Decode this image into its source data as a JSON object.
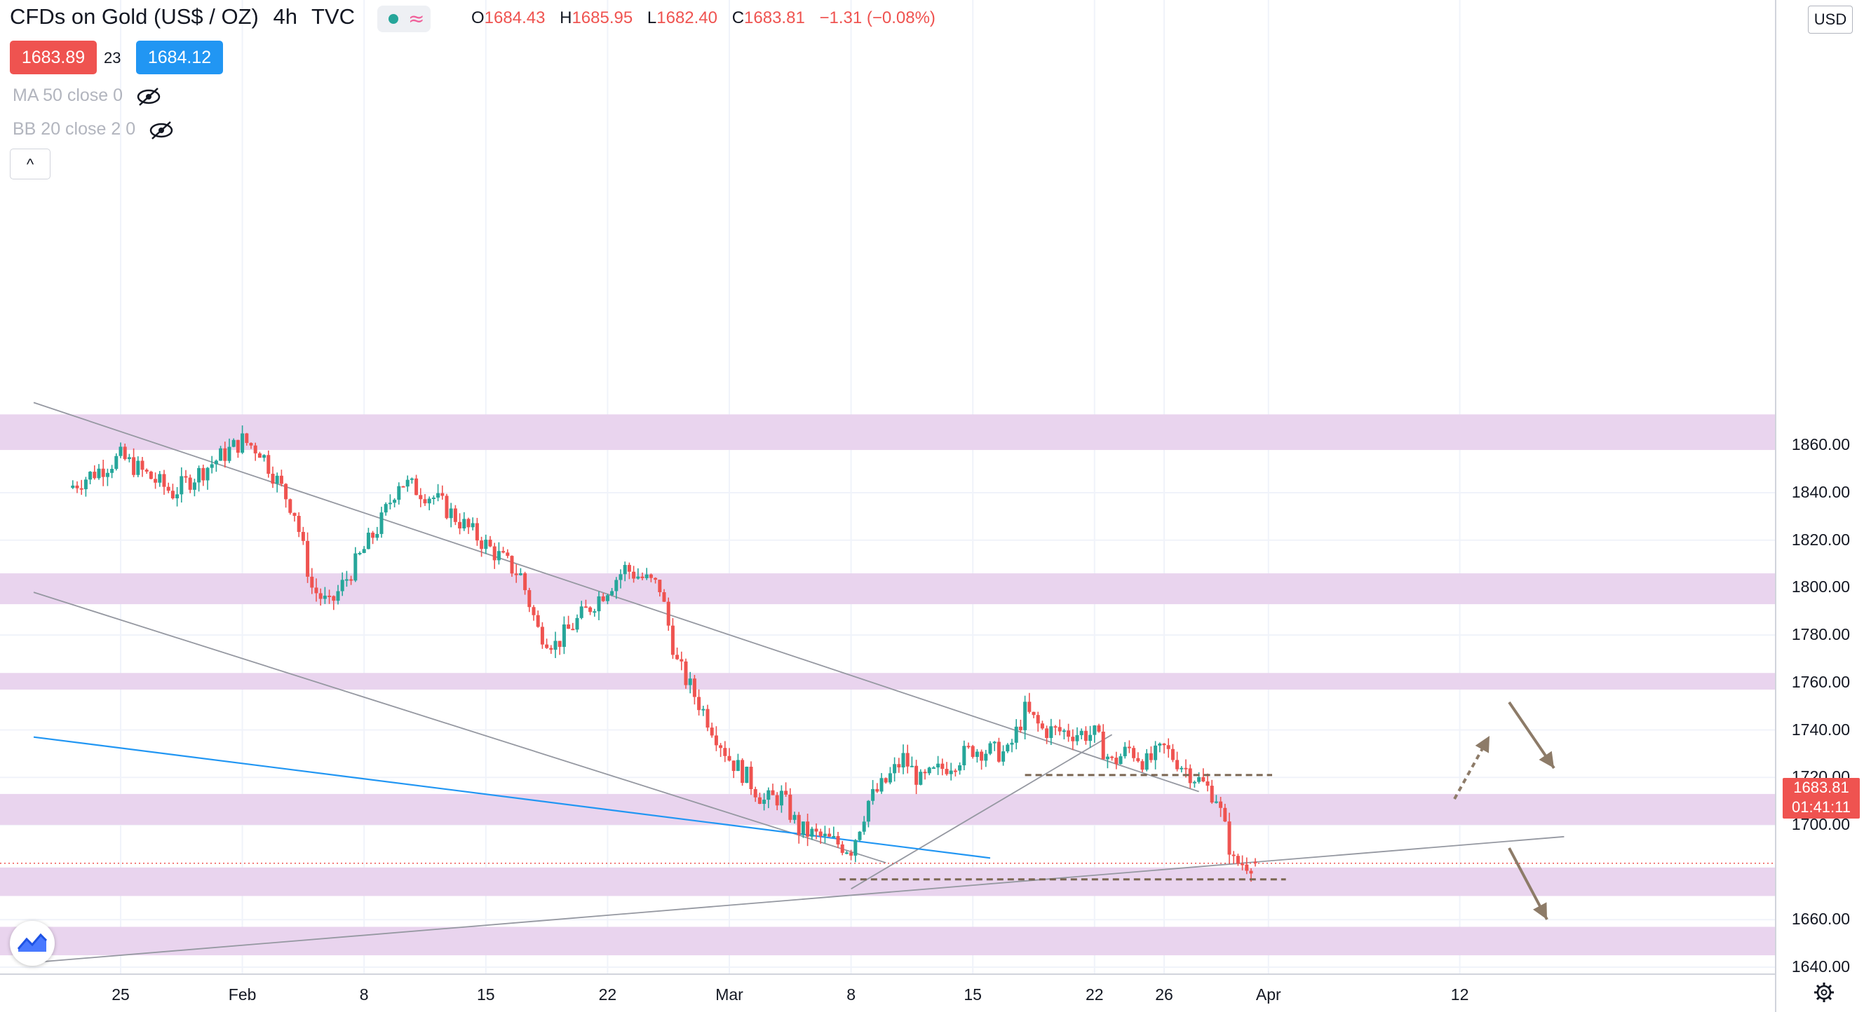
{
  "header": {
    "symbol": "CFDs on Gold (US$ / OZ)",
    "interval": "4h",
    "source": "TVC",
    "status_icons": [
      "market-open-dot-icon",
      "wave-icon"
    ],
    "ohlc": {
      "o_label": "O",
      "o": "1684.43",
      "h_label": "H",
      "h": "1685.95",
      "l_label": "L",
      "l": "1682.40",
      "c_label": "C",
      "c": "1683.81",
      "change": "−1.31 (−0.08%)"
    }
  },
  "trade": {
    "sell": "1683.89",
    "spread": "23",
    "buy": "1684.12"
  },
  "indicators": [
    {
      "label": "MA 50 close 0",
      "icon": "eye-hidden-icon"
    },
    {
      "label": "BB 20 close 2 0",
      "icon": "eye-hidden-icon"
    }
  ],
  "price_axis": {
    "currency": "USD",
    "labels": [
      "1860.00",
      "1840.00",
      "1820.00",
      "1800.00",
      "1780.00",
      "1760.00",
      "1740.00",
      "1720.00",
      "1700.00",
      "1660.00",
      "1640.00"
    ],
    "last_price": "1683.81",
    "countdown": "01:41:11"
  },
  "time_axis": {
    "labels": [
      "25",
      "Feb",
      "8",
      "15",
      "22",
      "Mar",
      "8",
      "15",
      "22",
      "26",
      "Apr",
      "12"
    ]
  },
  "colors": {
    "up": "#26a69a",
    "down": "#ef5350",
    "zone": "#e9d4ee",
    "trend": "#9598a1",
    "ma": "#2196f3",
    "arrow": "#8d7b68",
    "level": "#7a6652"
  },
  "chart_data": {
    "type": "candlestick",
    "series_name": "CFDs on Gold (US$ / OZ)",
    "interval": "4h",
    "ylim": [
      1633,
      1876
    ],
    "price_ticks": [
      1640,
      1660,
      1700,
      1720,
      1740,
      1760,
      1780,
      1800,
      1820,
      1840,
      1860
    ],
    "close_path": [
      [
        "Jan 22",
        1842
      ],
      [
        "Jan 25",
        1855
      ],
      [
        "Jan 28",
        1840
      ],
      [
        "Feb 1",
        1862
      ],
      [
        "Feb 2",
        1858
      ],
      [
        "Feb 4",
        1832
      ],
      [
        "Feb 5",
        1800
      ],
      [
        "Feb 6",
        1792
      ],
      [
        "Feb 9",
        1828
      ],
      [
        "Feb 10",
        1845
      ],
      [
        "Feb 12",
        1838
      ],
      [
        "Feb 15",
        1818
      ],
      [
        "Feb 17",
        1805
      ],
      [
        "Feb 18",
        1782
      ],
      [
        "Feb 19",
        1776
      ],
      [
        "Feb 22",
        1800
      ],
      [
        "Feb 23",
        1808
      ],
      [
        "Feb 25",
        1800
      ],
      [
        "Feb 26",
        1768
      ],
      [
        "Mar 1",
        1728
      ],
      [
        "Mar 2",
        1720
      ],
      [
        "Mar 3",
        1710
      ],
      [
        "Mar 4",
        1712
      ],
      [
        "Mar 5",
        1698
      ],
      [
        "Mar 8",
        1690
      ],
      [
        "Mar 9",
        1710
      ],
      [
        "Mar 10",
        1718
      ],
      [
        "Mar 11",
        1728
      ],
      [
        "Mar 12",
        1718
      ],
      [
        "Mar 15",
        1732
      ],
      [
        "Mar 17",
        1730
      ],
      [
        "Mar 18",
        1748
      ],
      [
        "Mar 19",
        1740
      ],
      [
        "Mar 22",
        1738
      ],
      [
        "Mar 23",
        1726
      ],
      [
        "Mar 24",
        1732
      ],
      [
        "Mar 25",
        1726
      ],
      [
        "Mar 26",
        1732
      ],
      [
        "Mar 29",
        1712
      ],
      [
        "Mar 30",
        1684
      ],
      [
        "Mar 31",
        1683.81
      ]
    ],
    "last": {
      "open": 1684.43,
      "high": 1685.95,
      "low": 1682.4,
      "close": 1683.81
    },
    "support_resistance_zones": [
      [
        1858,
        1873
      ],
      [
        1793,
        1806
      ],
      [
        1757,
        1764
      ],
      [
        1700,
        1713
      ],
      [
        1670,
        1682
      ],
      [
        1645,
        1657
      ]
    ],
    "horizontal_levels": [
      1721,
      1677
    ],
    "trendlines": [
      {
        "from": [
          "Jan 20",
          1878
        ],
        "to": [
          "Mar 28",
          1714
        ]
      },
      {
        "from": [
          "Jan 20",
          1798
        ],
        "to": [
          "Mar 10",
          1684
        ]
      },
      {
        "from": [
          "Jan 20",
          1642
        ],
        "to": [
          "Apr 18",
          1695
        ]
      },
      {
        "from": [
          "Mar 8",
          1673
        ],
        "to": [
          "Mar 23",
          1738
        ]
      },
      {
        "from": [
          "Jan 20",
          1737
        ],
        "to": [
          "Mar 16",
          1686
        ],
        "name": "MA 50"
      }
    ]
  }
}
